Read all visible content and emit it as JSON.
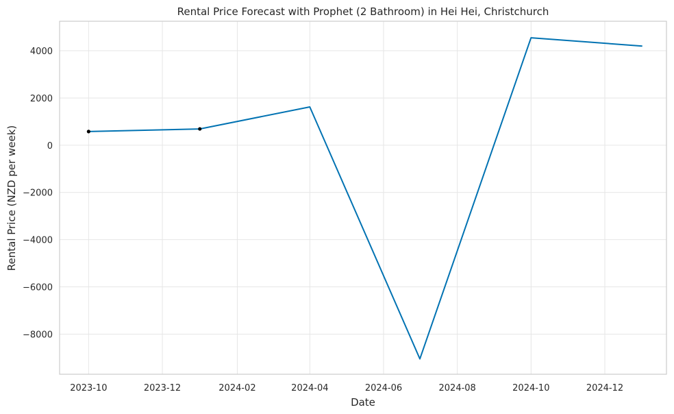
{
  "chart_data": {
    "type": "line",
    "title": "Rental Price Forecast with Prophet (2 Bathroom) in Hei Hei, Christchurch",
    "xlabel": "Date",
    "ylabel": "Rental Price (NZD per week)",
    "xlim": [
      "2023-09-07",
      "2025-01-21"
    ],
    "ylim": [
      -9700,
      5250
    ],
    "grid": true,
    "x_ticks": [
      "2023-10",
      "2023-12",
      "2024-02",
      "2024-04",
      "2024-06",
      "2024-08",
      "2024-10",
      "2024-12"
    ],
    "y_ticks": [
      4000,
      2000,
      0,
      -2000,
      -4000,
      -6000,
      -8000
    ],
    "y_tick_labels": [
      "4000",
      "2000",
      "0",
      "−2000",
      "−4000",
      "−6000",
      "−8000"
    ],
    "series": [
      {
        "role": "forecast",
        "color": "#0072b2",
        "x": [
          "2023-10-01",
          "2024-01-01",
          "2024-04-01",
          "2024-07-01",
          "2024-10-01",
          "2025-01-01"
        ],
        "y": [
          580,
          690,
          1620,
          -9050,
          4550,
          4200
        ]
      },
      {
        "role": "observed",
        "color": "#000000",
        "marker": "dot",
        "x": [
          "2023-10-01",
          "2024-01-01"
        ],
        "y": [
          580,
          690
        ]
      }
    ]
  }
}
